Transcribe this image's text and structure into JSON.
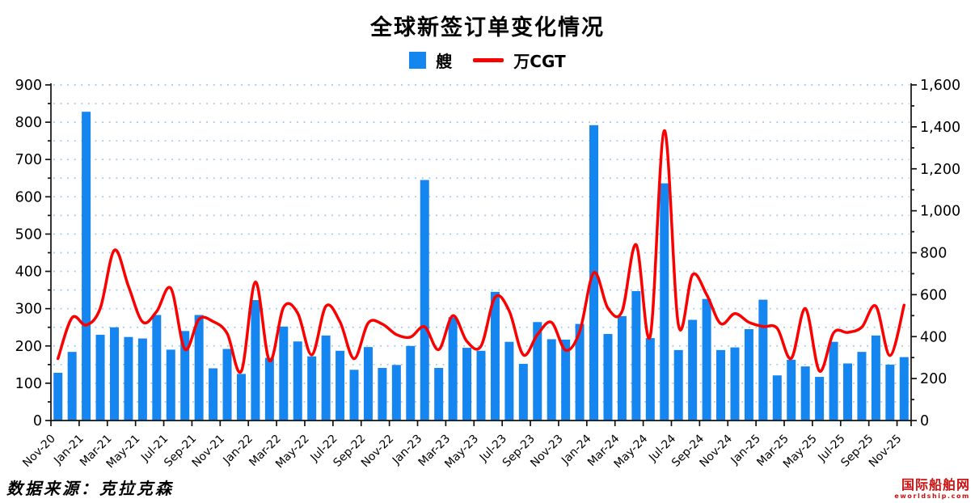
{
  "title": "全球新签订单变化情况",
  "legend": {
    "ships_label": "艘",
    "cgt_label": "万CGT"
  },
  "footer": {
    "source_note": "数据来源：克拉克森"
  },
  "watermark": {
    "name": "国际船舶网",
    "domain": "eworldship.com",
    "color": "#cc1111"
  },
  "colors": {
    "bar": "#1585f0",
    "line": "#fc0000",
    "grid_dots": "#9cc6ee",
    "axis": "#111111",
    "text": "#000000"
  },
  "chart_data": {
    "type": "bar",
    "subtype": "bar+line combo, dual axis",
    "title": "全球新签订单变化情况",
    "xlabel": "",
    "ylabel_left": "艘",
    "ylabel_right": "万CGT",
    "left_axis": {
      "min": 0,
      "max": 900,
      "major_step": 100,
      "minor_step": 50
    },
    "right_axis": {
      "min": 0,
      "max": 1600,
      "major_step": 200,
      "minor_step": 100
    },
    "x_tick_every": 2,
    "grid": "horizontal dotted lines every 50 (left-axis units)",
    "legend_position": "top-center",
    "categories": [
      "Nov-20",
      "Dec-20",
      "Jan-21",
      "Feb-21",
      "Mar-21",
      "Apr-21",
      "May-21",
      "Jun-21",
      "Jul-21",
      "Aug-21",
      "Sep-21",
      "Oct-21",
      "Nov-21",
      "Dec-21",
      "Jan-22",
      "Feb-22",
      "Mar-22",
      "Apr-22",
      "May-22",
      "Jun-22",
      "Jul-22",
      "Aug-22",
      "Sep-22",
      "Oct-22",
      "Nov-22",
      "Dec-22",
      "Jan-23",
      "Feb-23",
      "Mar-23",
      "Apr-23",
      "May-23",
      "Jun-23",
      "Jul-23",
      "Aug-23",
      "Sep-23",
      "Oct-23",
      "Nov-23",
      "Dec-23",
      "Jan-24",
      "Feb-24",
      "Mar-24",
      "Apr-24",
      "May-24",
      "Jun-24",
      "Jul-24",
      "Aug-24",
      "Sep-24",
      "Oct-24",
      "Nov-24",
      "Dec-24",
      "Jan-25",
      "Feb-25",
      "Mar-25",
      "Apr-25",
      "May-25",
      "Jun-25",
      "Jul-25",
      "Aug-25",
      "Sep-25",
      "Oct-25",
      "Nov-25"
    ],
    "series": [
      {
        "name": "艘",
        "type": "bar",
        "axis": "left",
        "color": "#1585f0",
        "values": [
          128,
          184,
          828,
          230,
          250,
          224,
          220,
          283,
          190,
          240,
          283,
          140,
          192,
          125,
          323,
          168,
          252,
          212,
          172,
          228,
          187,
          136,
          197,
          141,
          149,
          200,
          645,
          141,
          277,
          195,
          187,
          345,
          211,
          152,
          264,
          218,
          217,
          259,
          792,
          232,
          280,
          347,
          221,
          636,
          189,
          270,
          326,
          189,
          196,
          245,
          324,
          121,
          163,
          145,
          117,
          211,
          153,
          184,
          228,
          150,
          170
        ]
      },
      {
        "name": "万CGT",
        "type": "line",
        "axis": "right",
        "color": "#fc0000",
        "smooth": true,
        "values": [
          295,
          490,
          455,
          535,
          812,
          640,
          470,
          520,
          630,
          340,
          483,
          472,
          415,
          235,
          660,
          285,
          540,
          512,
          313,
          545,
          470,
          295,
          465,
          460,
          410,
          398,
          447,
          338,
          500,
          377,
          355,
          588,
          522,
          313,
          410,
          468,
          335,
          425,
          705,
          535,
          520,
          838,
          402,
          1382,
          455,
          695,
          600,
          462,
          510,
          468,
          448,
          440,
          296,
          534,
          236,
          418,
          420,
          445,
          545,
          310,
          550
        ]
      }
    ]
  }
}
